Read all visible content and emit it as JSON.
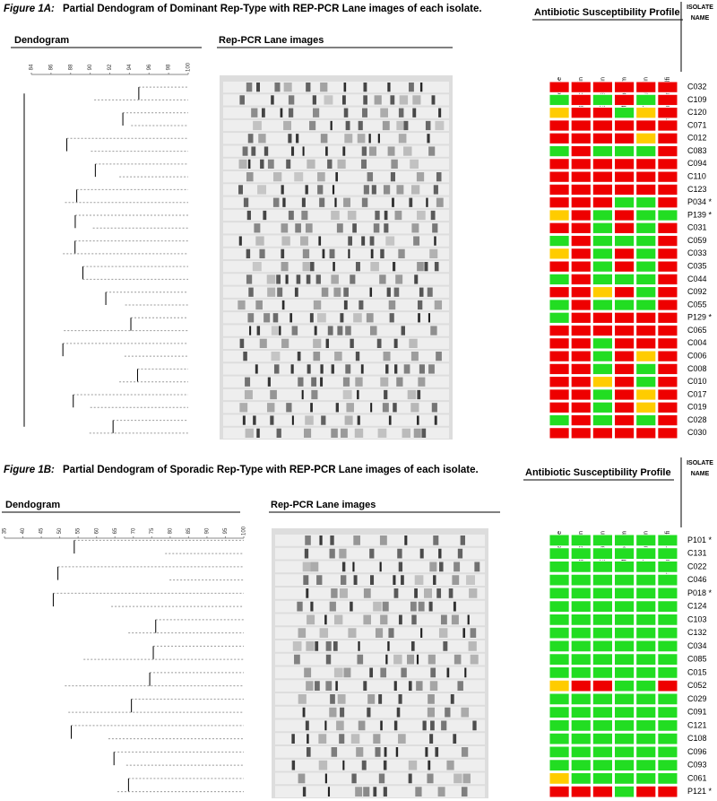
{
  "figure_a": {
    "title_prefix": "Figure 1A:",
    "title": "Partial Dendogram of Dominant Rep-Type with REP-PCR Lane images of each isolate.",
    "dendogram_label": "Dendogram",
    "lanes_label": "Rep-PCR Lane images",
    "profile_label": "Antibiotic Susceptibility Profile",
    "isolate_label": [
      "ISOLATE",
      "NAME"
    ],
    "axis_ticks": [
      "84",
      "86",
      "88",
      "90",
      "92",
      "94",
      "96",
      "98",
      "100"
    ],
    "antibiotics": [
      "Cefepime",
      "Ciprofloxacin",
      "Gentamicin",
      "Meropenem",
      "Tobramycin",
      "Trimethoprim-Sulfi"
    ],
    "isolates": [
      "C032",
      "C109",
      "C120",
      "C071",
      "C012",
      "C083",
      "C094",
      "C110",
      "C123",
      "P034 *",
      "P139 *",
      "C031",
      "C059",
      "C033",
      "C035",
      "C044",
      "C092",
      "C055",
      "P129 *",
      "C065",
      "C004",
      "C006",
      "C008",
      "C010",
      "C017",
      "C019",
      "C028",
      "C030"
    ],
    "profile": [
      [
        "#e00",
        "#e00",
        "#e00",
        "#e00",
        "#e00",
        "#e00"
      ],
      [
        "#2d2",
        "#e00",
        "#2d2",
        "#e00",
        "#2d2",
        "#e00"
      ],
      [
        "#fc0",
        "#e00",
        "#e00",
        "#2d2",
        "#fc0",
        "#e00"
      ],
      [
        "#e00",
        "#e00",
        "#e00",
        "#e00",
        "#e00",
        "#e00"
      ],
      [
        "#e00",
        "#e00",
        "#e00",
        "#e00",
        "#fc0",
        "#e00"
      ],
      [
        "#2d2",
        "#e00",
        "#2d2",
        "#2d2",
        "#2d2",
        "#e00"
      ],
      [
        "#e00",
        "#e00",
        "#e00",
        "#e00",
        "#e00",
        "#e00"
      ],
      [
        "#e00",
        "#e00",
        "#e00",
        "#e00",
        "#e00",
        "#e00"
      ],
      [
        "#e00",
        "#e00",
        "#e00",
        "#e00",
        "#e00",
        "#e00"
      ],
      [
        "#e00",
        "#e00",
        "#e00",
        "#2d2",
        "#2d2",
        "#e00"
      ],
      [
        "#fc0",
        "#e00",
        "#2d2",
        "#e00",
        "#2d2",
        "#2d2"
      ],
      [
        "#e00",
        "#e00",
        "#2d2",
        "#e00",
        "#2d2",
        "#e00"
      ],
      [
        "#2d2",
        "#e00",
        "#2d2",
        "#2d2",
        "#2d2",
        "#e00"
      ],
      [
        "#fc0",
        "#e00",
        "#2d2",
        "#e00",
        "#2d2",
        "#e00"
      ],
      [
        "#e00",
        "#e00",
        "#2d2",
        "#e00",
        "#2d2",
        "#e00"
      ],
      [
        "#2d2",
        "#e00",
        "#2d2",
        "#2d2",
        "#2d2",
        "#e00"
      ],
      [
        "#e00",
        "#e00",
        "#fc0",
        "#e00",
        "#2d2",
        "#e00"
      ],
      [
        "#2d2",
        "#e00",
        "#2d2",
        "#2d2",
        "#2d2",
        "#e00"
      ],
      [
        "#2d2",
        "#e00",
        "#e00",
        "#e00",
        "#e00",
        "#e00"
      ],
      [
        "#e00",
        "#e00",
        "#e00",
        "#e00",
        "#e00",
        "#e00"
      ],
      [
        "#e00",
        "#e00",
        "#2d2",
        "#e00",
        "#e00",
        "#e00"
      ],
      [
        "#e00",
        "#e00",
        "#2d2",
        "#e00",
        "#fc0",
        "#e00"
      ],
      [
        "#e00",
        "#e00",
        "#2d2",
        "#e00",
        "#2d2",
        "#e00"
      ],
      [
        "#e00",
        "#e00",
        "#fc0",
        "#e00",
        "#2d2",
        "#e00"
      ],
      [
        "#e00",
        "#e00",
        "#2d2",
        "#e00",
        "#fc0",
        "#e00"
      ],
      [
        "#e00",
        "#e00",
        "#2d2",
        "#e00",
        "#fc0",
        "#e00"
      ],
      [
        "#2d2",
        "#e00",
        "#2d2",
        "#e00",
        "#2d2",
        "#e00"
      ],
      [
        "#e00",
        "#e00",
        "#e00",
        "#e00",
        "#e00",
        "#e00"
      ]
    ]
  },
  "figure_b": {
    "title_prefix": "Figure 1B:",
    "title": "Partial Dendogram of Sporadic Rep-Type with REP-PCR Lane images of each isolate.",
    "dendogram_label": "Dendogram",
    "lanes_label": "Rep-PCR Lane images",
    "profile_label": "Antibiotic Susceptibility Profile",
    "isolate_label": [
      "ISOLATE",
      "NAME"
    ],
    "axis_ticks": [
      "35",
      "40",
      "45",
      "50",
      "55",
      "60",
      "65",
      "70",
      "75",
      "80",
      "85",
      "90",
      "95",
      "100"
    ],
    "antibiotics": [
      "Cefepime",
      "Ciprofloxacin",
      "Gentamicin",
      "Meropenem",
      "Tobramycin",
      "Trimethoprim-Sulfi"
    ],
    "isolates": [
      "P101 *",
      "C131",
      "C022",
      "C046",
      "P018 *",
      "C124",
      "C103",
      "C132",
      "C034",
      "C085",
      "C015",
      "C052",
      "C029",
      "C091",
      "C121",
      "C108",
      "C096",
      "C093",
      "C061",
      "P121 *"
    ],
    "profile": [
      [
        "#2d2",
        "#2d2",
        "#2d2",
        "#2d2",
        "#2d2",
        "#2d2"
      ],
      [
        "#2d2",
        "#2d2",
        "#2d2",
        "#2d2",
        "#2d2",
        "#2d2"
      ],
      [
        "#2d2",
        "#2d2",
        "#2d2",
        "#2d2",
        "#2d2",
        "#2d2"
      ],
      [
        "#2d2",
        "#2d2",
        "#2d2",
        "#2d2",
        "#2d2",
        "#2d2"
      ],
      [
        "#2d2",
        "#2d2",
        "#2d2",
        "#2d2",
        "#2d2",
        "#2d2"
      ],
      [
        "#2d2",
        "#2d2",
        "#2d2",
        "#2d2",
        "#2d2",
        "#2d2"
      ],
      [
        "#2d2",
        "#2d2",
        "#2d2",
        "#2d2",
        "#2d2",
        "#2d2"
      ],
      [
        "#2d2",
        "#2d2",
        "#2d2",
        "#2d2",
        "#2d2",
        "#2d2"
      ],
      [
        "#2d2",
        "#2d2",
        "#2d2",
        "#2d2",
        "#2d2",
        "#2d2"
      ],
      [
        "#2d2",
        "#2d2",
        "#2d2",
        "#2d2",
        "#2d2",
        "#2d2"
      ],
      [
        "#2d2",
        "#2d2",
        "#2d2",
        "#2d2",
        "#2d2",
        "#2d2"
      ],
      [
        "#fc0",
        "#e00",
        "#e00",
        "#2d2",
        "#2d2",
        "#e00"
      ],
      [
        "#2d2",
        "#2d2",
        "#2d2",
        "#2d2",
        "#2d2",
        "#2d2"
      ],
      [
        "#2d2",
        "#2d2",
        "#2d2",
        "#2d2",
        "#2d2",
        "#2d2"
      ],
      [
        "#2d2",
        "#2d2",
        "#2d2",
        "#2d2",
        "#2d2",
        "#2d2"
      ],
      [
        "#2d2",
        "#2d2",
        "#2d2",
        "#2d2",
        "#2d2",
        "#2d2"
      ],
      [
        "#2d2",
        "#2d2",
        "#2d2",
        "#2d2",
        "#2d2",
        "#2d2"
      ],
      [
        "#2d2",
        "#2d2",
        "#2d2",
        "#2d2",
        "#2d2",
        "#2d2"
      ],
      [
        "#fc0",
        "#2d2",
        "#2d2",
        "#2d2",
        "#2d2",
        "#2d2"
      ],
      [
        "#e00",
        "#e00",
        "#e00",
        "#2d2",
        "#e00",
        "#e00"
      ]
    ]
  }
}
